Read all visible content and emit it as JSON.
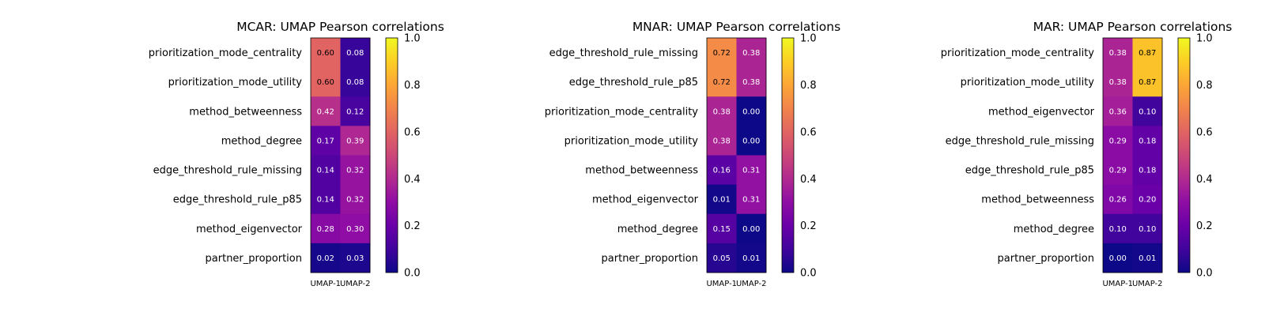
{
  "chart_data": [
    {
      "type": "heatmap",
      "title": "MCAR: UMAP Pearson correlations",
      "rows": [
        "prioritization_mode_centrality",
        "prioritization_mode_utility",
        "method_betweenness",
        "method_degree",
        "edge_threshold_rule_missing",
        "edge_threshold_rule_p85",
        "method_eigenvector",
        "partner_proportion"
      ],
      "columns": [
        "UMAP-1",
        "UMAP-2"
      ],
      "values": [
        [
          0.6,
          0.08
        ],
        [
          0.6,
          0.08
        ],
        [
          0.42,
          0.12
        ],
        [
          0.17,
          0.39
        ],
        [
          0.14,
          0.32
        ],
        [
          0.14,
          0.32
        ],
        [
          0.28,
          0.3
        ],
        [
          0.02,
          0.03
        ]
      ],
      "value_labels": [
        [
          "0.60",
          "0.08"
        ],
        [
          "0.60",
          "0.08"
        ],
        [
          "0.42",
          "0.12"
        ],
        [
          "0.17",
          "0.39"
        ],
        [
          "0.14",
          "0.32"
        ],
        [
          "0.14",
          "0.32"
        ],
        [
          "0.28",
          "0.30"
        ],
        [
          "0.02",
          "0.03"
        ]
      ],
      "colormap": "plasma",
      "vlim": [
        0,
        1
      ],
      "colorbar_ticks": [
        "0.0",
        "0.2",
        "0.4",
        "0.6",
        "0.8",
        "1.0"
      ]
    },
    {
      "type": "heatmap",
      "title": "MNAR: UMAP Pearson correlations",
      "rows": [
        "edge_threshold_rule_missing",
        "edge_threshold_rule_p85",
        "prioritization_mode_centrality",
        "prioritization_mode_utility",
        "method_betweenness",
        "method_eigenvector",
        "method_degree",
        "partner_proportion"
      ],
      "columns": [
        "UMAP-1",
        "UMAP-2"
      ],
      "values": [
        [
          0.72,
          0.38
        ],
        [
          0.72,
          0.38
        ],
        [
          0.38,
          0.0
        ],
        [
          0.38,
          0.0
        ],
        [
          0.16,
          0.31
        ],
        [
          0.01,
          0.31
        ],
        [
          0.15,
          0.0
        ],
        [
          0.05,
          0.01
        ]
      ],
      "value_labels": [
        [
          "0.72",
          "0.38"
        ],
        [
          "0.72",
          "0.38"
        ],
        [
          "0.38",
          "0.00"
        ],
        [
          "0.38",
          "0.00"
        ],
        [
          "0.16",
          "0.31"
        ],
        [
          "0.01",
          "0.31"
        ],
        [
          "0.15",
          "0.00"
        ],
        [
          "0.05",
          "0.01"
        ]
      ],
      "colormap": "plasma",
      "vlim": [
        0,
        1
      ],
      "colorbar_ticks": [
        "0.0",
        "0.2",
        "0.4",
        "0.6",
        "0.8",
        "1.0"
      ]
    },
    {
      "type": "heatmap",
      "title": "MAR: UMAP Pearson correlations",
      "rows": [
        "prioritization_mode_centrality",
        "prioritization_mode_utility",
        "method_eigenvector",
        "edge_threshold_rule_missing",
        "edge_threshold_rule_p85",
        "method_betweenness",
        "method_degree",
        "partner_proportion"
      ],
      "columns": [
        "UMAP-1",
        "UMAP-2"
      ],
      "values": [
        [
          0.38,
          0.87
        ],
        [
          0.38,
          0.87
        ],
        [
          0.36,
          0.1
        ],
        [
          0.29,
          0.18
        ],
        [
          0.29,
          0.18
        ],
        [
          0.26,
          0.2
        ],
        [
          0.1,
          0.1
        ],
        [
          0.0,
          0.01
        ]
      ],
      "value_labels": [
        [
          "0.38",
          "0.87"
        ],
        [
          "0.38",
          "0.87"
        ],
        [
          "0.36",
          "0.10"
        ],
        [
          "0.29",
          "0.18"
        ],
        [
          "0.29",
          "0.18"
        ],
        [
          "0.26",
          "0.20"
        ],
        [
          "0.10",
          "0.10"
        ],
        [
          "0.00",
          "0.01"
        ]
      ],
      "colormap": "plasma",
      "vlim": [
        0,
        1
      ],
      "colorbar_ticks": [
        "0.0",
        "0.2",
        "0.4",
        "0.6",
        "0.8",
        "1.0"
      ]
    }
  ]
}
